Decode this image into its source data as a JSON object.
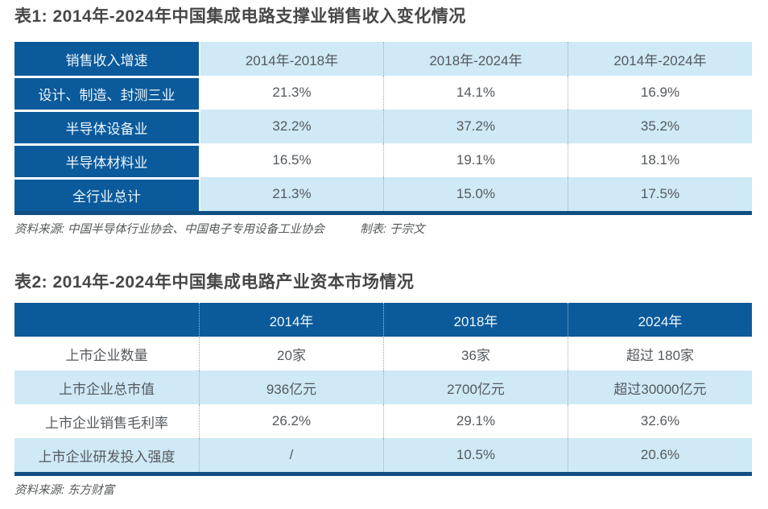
{
  "table1": {
    "title": "表1: 2014年-2024年中国集成电路支撑业销售收入变化情况",
    "header": [
      "销售收入增速",
      "2014年-2018年",
      "2018年-2024年",
      "2014年-2024年"
    ],
    "rows": [
      {
        "label": "设计、制造、封测三业",
        "values": [
          "21.3%",
          "14.1%",
          "16.9%"
        ]
      },
      {
        "label": "半导体设备业",
        "values": [
          "32.2%",
          "37.2%",
          "35.2%"
        ]
      },
      {
        "label": "半导体材料业",
        "values": [
          "16.5%",
          "19.1%",
          "18.1%"
        ]
      },
      {
        "label": "全行业总计",
        "values": [
          "21.3%",
          "15.0%",
          "17.5%"
        ]
      }
    ],
    "source": "资料来源: 中国半导体行业协会、中国电子专用设备工业协会",
    "credit": "制表: 于宗文"
  },
  "table2": {
    "title": "表2: 2014年-2024年中国集成电路产业资本市场情况",
    "header": [
      "",
      "2014年",
      "2018年",
      "2024年"
    ],
    "rows": [
      {
        "label": "上市企业数量",
        "values": [
          "20家",
          "36家",
          "超过 180家"
        ]
      },
      {
        "label": "上市企业总市值",
        "values": [
          "936亿元",
          "2700亿元",
          "超过30000亿元"
        ]
      },
      {
        "label": "上市企业销售毛利率",
        "values": [
          "26.2%",
          "29.1%",
          "32.6%"
        ]
      },
      {
        "label": "上市企业研发投入强度",
        "values": [
          "/",
          "10.5%",
          "20.6%"
        ]
      }
    ],
    "source": "资料来源: 东方财富"
  },
  "colors": {
    "dark_blue": "#0b5a9b",
    "light_blue": "#cfe9f6",
    "border_blue": "#0f4f82",
    "title_text": "#474747",
    "cell_text": "#54595d"
  }
}
